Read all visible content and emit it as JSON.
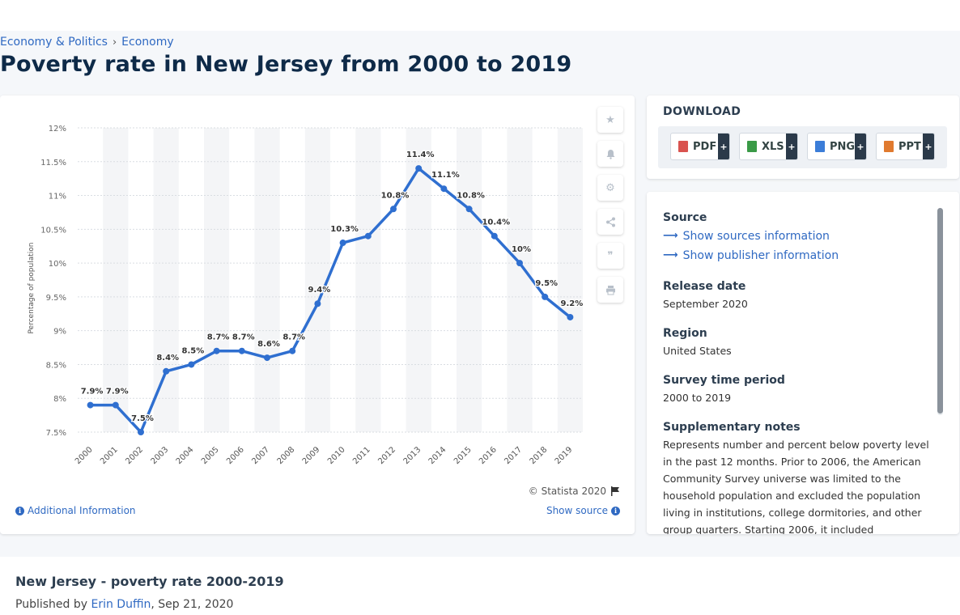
{
  "breadcrumb": {
    "item1": "Economy & Politics",
    "sep": "›",
    "item2": "Economy"
  },
  "page_title": "Poverty rate in New Jersey from 2000 to 2019",
  "chart_card": {
    "copyright": "© Statista 2020",
    "additional_info": "Additional Information",
    "show_source": "Show source"
  },
  "tools": [
    "star-icon",
    "bell-icon",
    "gear-icon",
    "share-icon",
    "quote-icon",
    "print-icon"
  ],
  "download": {
    "title": "DOWNLOAD",
    "buttons": [
      {
        "label": "PDF",
        "color": "#d9534f"
      },
      {
        "label": "XLS",
        "color": "#3a9a47"
      },
      {
        "label": "PNG",
        "color": "#3b7dd8"
      },
      {
        "label": "PPT",
        "color": "#e07a2f"
      }
    ],
    "plus": "+"
  },
  "meta": {
    "source_h": "Source",
    "show_sources": "Show sources information",
    "show_publisher": "Show publisher information",
    "release_h": "Release date",
    "release_v": "September 2020",
    "region_h": "Region",
    "region_v": "United States",
    "period_h": "Survey time period",
    "period_v": "2000 to 2019",
    "notes_h": "Supplementary notes",
    "notes_v": "Represents number and percent below poverty level in the past 12 months. Prior to 2006, the American Community Survey universe was limited to the household population and excluded the population living in institutions, college dormitories, and other group quarters. Starting 2006, it included"
  },
  "bottom": {
    "title": "New Jersey - poverty rate 2000-2019",
    "published_prefix": "Published by",
    "author": "Erin Duffin",
    "date": ", Sep 21, 2020"
  },
  "colors": {
    "line": "#2f6fd0",
    "accent": "#2f69c2",
    "title": "#0e2a48"
  },
  "chart_data": {
    "type": "line",
    "x": [
      "2000",
      "2001",
      "2002",
      "2003",
      "2004",
      "2005",
      "2006",
      "2007",
      "2008",
      "2009",
      "2010",
      "2011",
      "2012",
      "2013",
      "2014",
      "2015",
      "2016",
      "2017",
      "2018",
      "2019"
    ],
    "series": [
      {
        "values": [
          7.9,
          7.9,
          7.5,
          8.4,
          8.5,
          8.7,
          8.7,
          8.6,
          8.7,
          9.4,
          10.3,
          10.4,
          10.8,
          11.4,
          11.1,
          10.8,
          10.4,
          10,
          9.5,
          9.2
        ]
      }
    ],
    "data_labels": [
      "7.9%",
      "7.9%",
      "7.5%",
      "8.4%",
      "8.5%",
      "8.7%",
      "8.7%",
      "8.6%",
      "8.7%",
      "9.4%",
      "10.3%",
      "",
      "10.8%",
      "11.4%",
      "11.1%",
      "10.8%",
      "10.4%",
      "10%",
      "9.5%",
      "9.2%"
    ],
    "ylabel": "Percentage of population",
    "yticks": [
      "7.5%",
      "8%",
      "8.5%",
      "9%",
      "9.5%",
      "10%",
      "10.5%",
      "11%",
      "11.5%",
      "12%"
    ],
    "ylim": [
      7.5,
      12
    ],
    "grid": true,
    "legend": "none"
  }
}
